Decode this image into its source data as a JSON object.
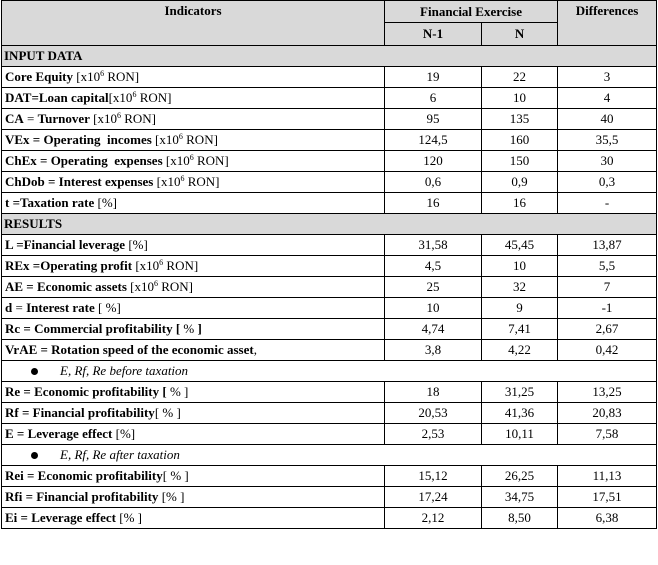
{
  "header": {
    "indicators": "Indicators",
    "financial_exercise": "Financial Exercise",
    "differences": "Differences",
    "col_n1": "N-1",
    "col_n": "N"
  },
  "sections": [
    {
      "title": "INPUT DATA",
      "rows": [
        {
          "bold": "Core Equity",
          "rest": " [x10",
          "sup": "6",
          "tail": " RON]",
          "n1": "19",
          "n": "22",
          "diff": "3"
        },
        {
          "bold": "DAT=Loan capital",
          "rest": "[x10",
          "sup": "6",
          "tail": " RON]",
          "n1": "6",
          "n": "10",
          "diff": "4"
        },
        {
          "bold": "CA",
          "rest": " = ",
          "bold2": "Turnover",
          "rest2": " [x10",
          "sup": "6",
          "tail": " RON]",
          "n1": "95",
          "n": "135",
          "diff": "40"
        },
        {
          "bold": "VEx = Operating  incomes",
          "rest": " [x10",
          "sup": "6",
          "tail": " RON]",
          "n1": "124,5",
          "n": "160",
          "diff": "35,5"
        },
        {
          "bold": "ChEx = Operating  expenses",
          "rest": " [x10",
          "sup": "6",
          "tail": " RON]",
          "n1": "120",
          "n": "150",
          "diff": "30"
        },
        {
          "bold": "ChDob = Interest expenses",
          "rest": " [x10",
          "sup": "6",
          "tail": " RON]",
          "n1": "0,6",
          "n": "0,9",
          "diff": "0,3"
        },
        {
          "bold": "t =Taxation rate",
          "rest": " [%]",
          "n1": "16",
          "n": "16",
          "diff": "-"
        }
      ]
    },
    {
      "title": "RESULTS",
      "rows": [
        {
          "bold": "L =Financial leverage",
          "rest": " [%]",
          "n1": "31,58",
          "n": "45,45",
          "diff": "13,87"
        },
        {
          "bold": "REx =Operating profit",
          "rest": " [x10",
          "sup": "6",
          "tail": " RON]",
          "n1": "4,5",
          "n": "10",
          "diff": "5,5"
        },
        {
          "bold": "AE = Economic assets",
          "rest": " [x10",
          "sup": "6",
          "tail": " RON]",
          "n1": "25",
          "n": "32",
          "diff": "7"
        },
        {
          "bold": "d",
          "rest": " = ",
          "bold2": "Interest rate",
          "rest2": " [ %]",
          "n1": "10",
          "n": "9",
          "diff": "-1"
        },
        {
          "bold": "Rc = Commercial profitability [",
          "rest": " % ",
          "bold2": "]",
          "n1": "4,74",
          "n": "7,41",
          "diff": "2,67"
        },
        {
          "bold": "VrAE = Rotation speed of the economic asset",
          "rest": ",",
          "n1": "3,8",
          "n": "4,22",
          "diff": "0,42"
        },
        {
          "subheading": "E, Rf, Re before taxation"
        },
        {
          "bold": "Re = Economic profitability [",
          "rest": " % ]",
          "n1": "18",
          "n": "31,25",
          "diff": "13,25"
        },
        {
          "bold": "Rf = Financial profitability",
          "rest": "[ % ]",
          "n1": "20,53",
          "n": "41,36",
          "diff": "20,83"
        },
        {
          "bold": "E = Leverage effect",
          "rest": " [%]",
          "n1": "2,53",
          "n": "10,11",
          "diff": "7,58"
        },
        {
          "subheading": "E, Rf, Re after taxation"
        },
        {
          "bold": "Rei = Economic profitability",
          "rest": "[ % ]",
          "n1": "15,12",
          "n": "26,25",
          "diff": "11,13"
        },
        {
          "bold": "Rfi = Financial profitability",
          "rest": " [% ]",
          "n1": "17,24",
          "n": "34,75",
          "diff": "17,51"
        },
        {
          "bold": "Ei = Leverage effect",
          "rest": " [% ]",
          "n1": "2,12",
          "n": "8,50",
          "diff": "6,38"
        }
      ]
    }
  ]
}
